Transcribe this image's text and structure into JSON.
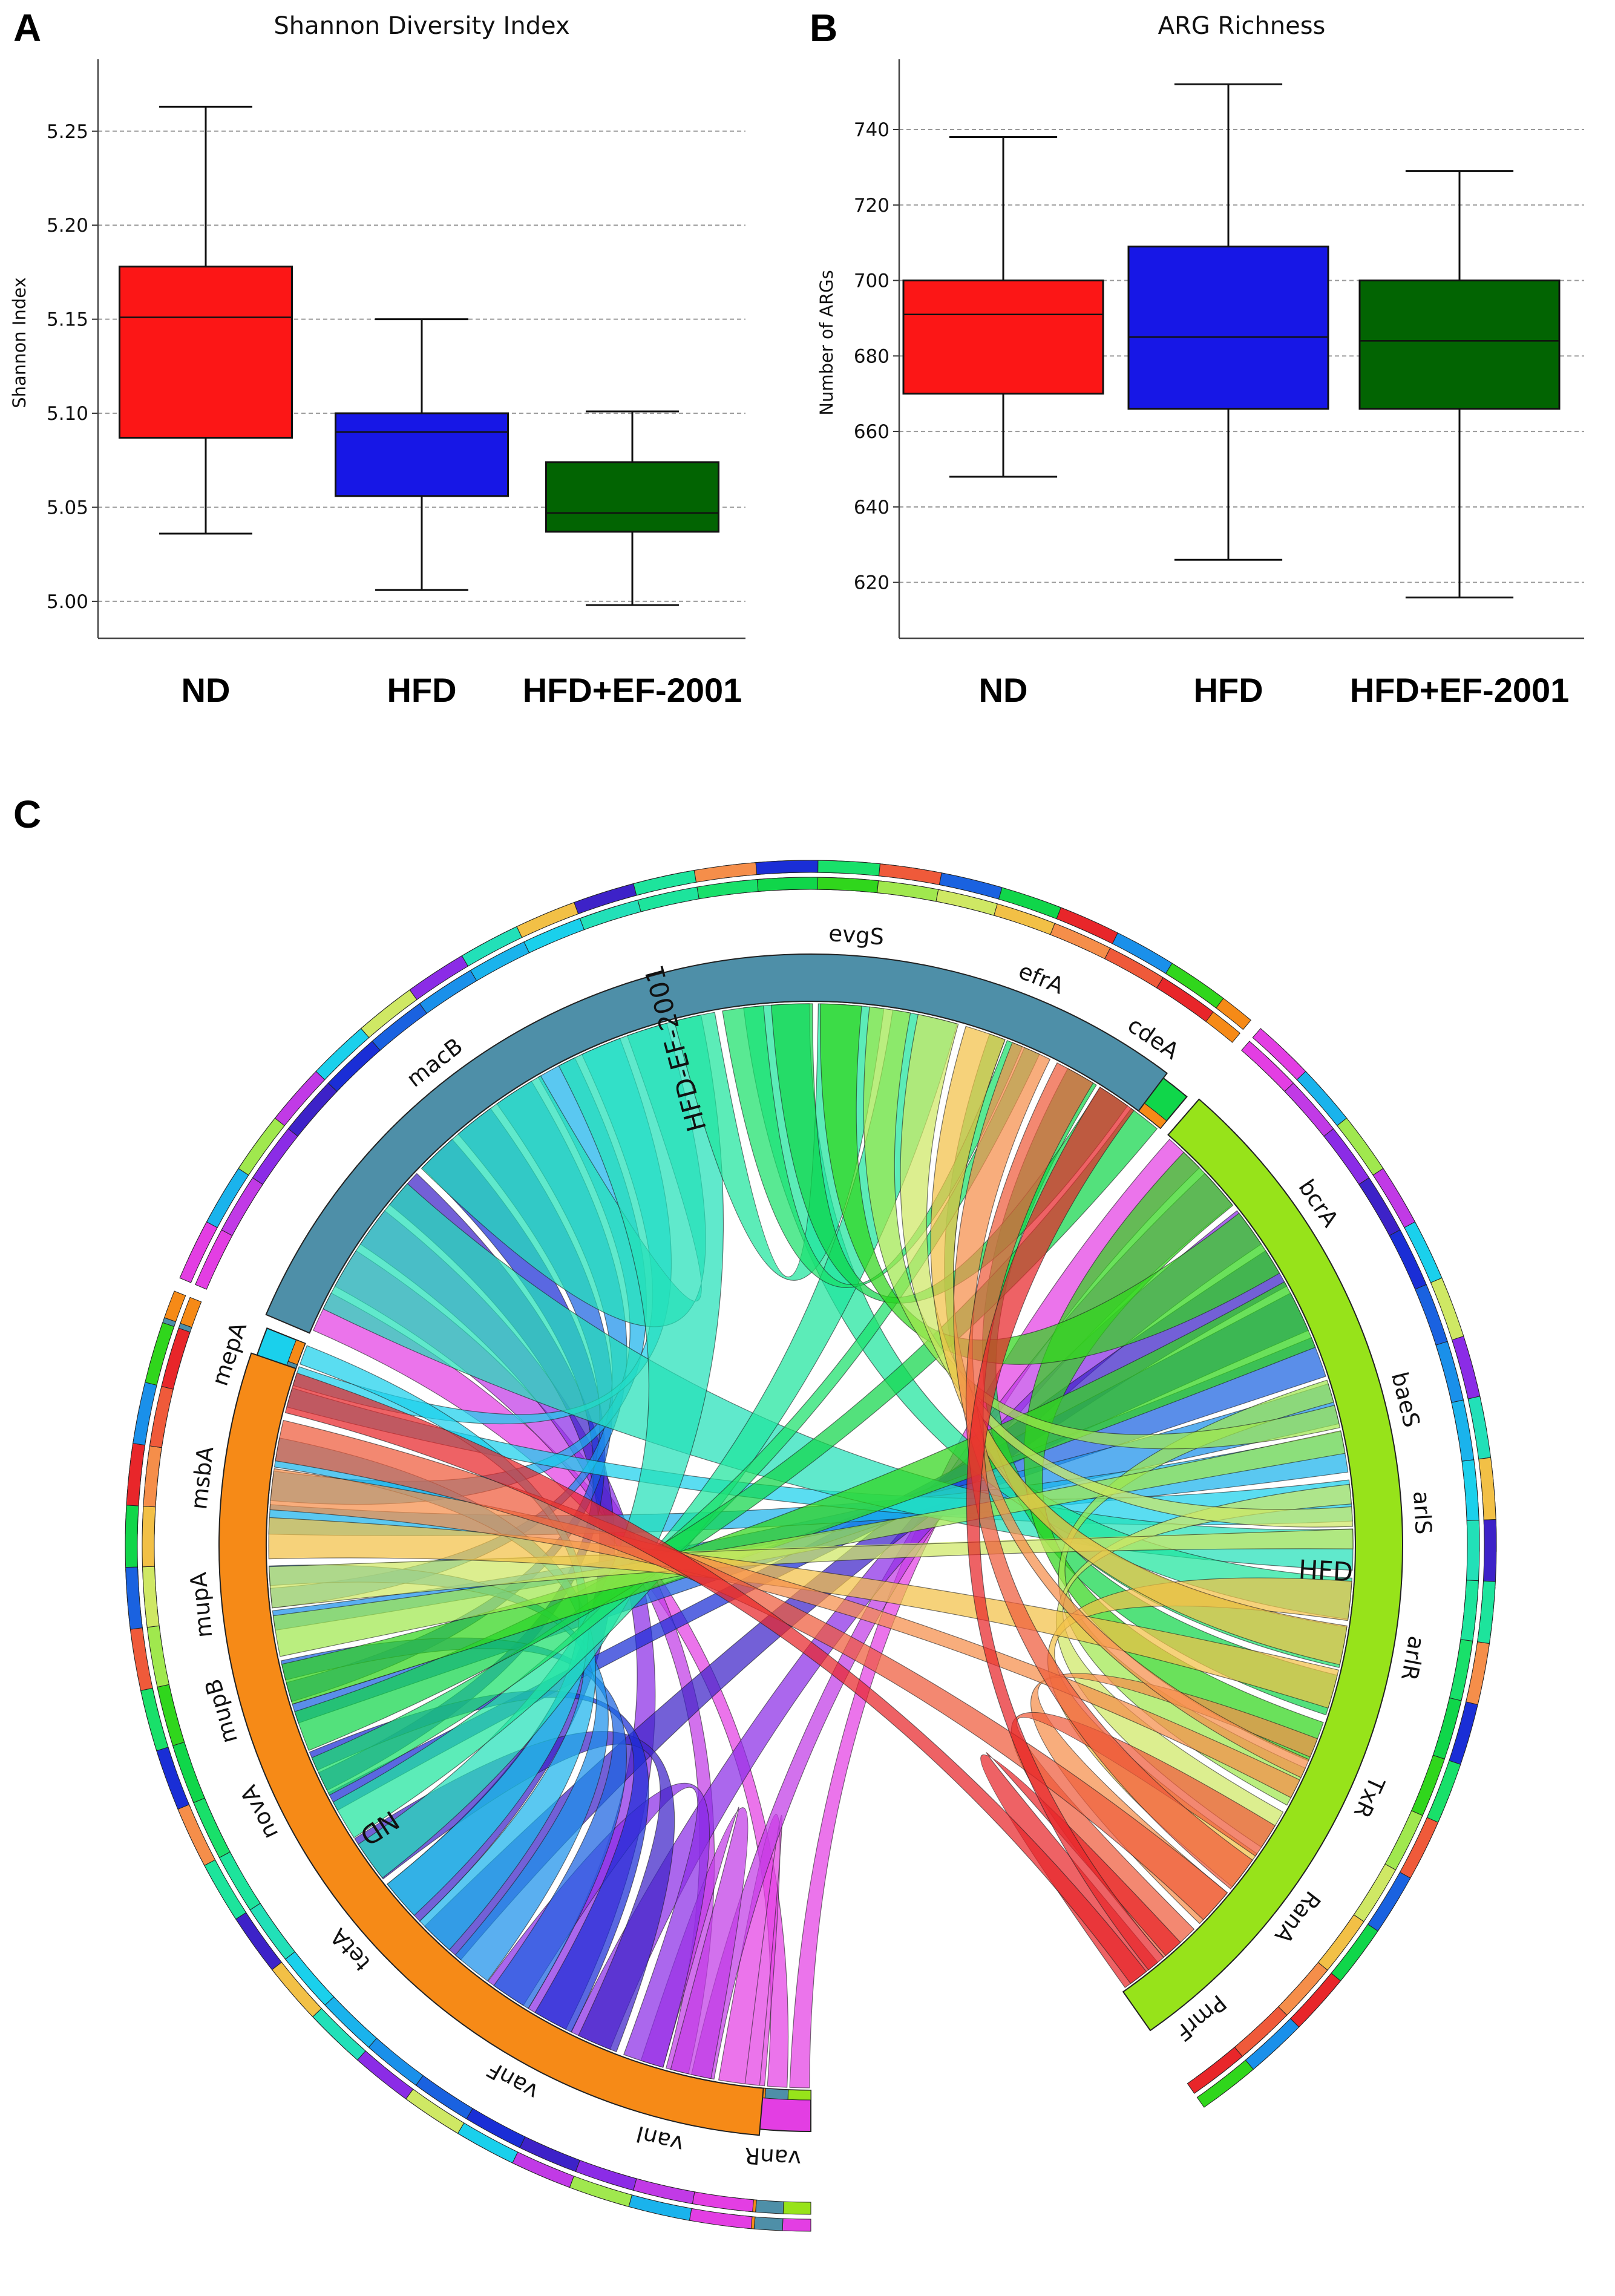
{
  "panels": {
    "a": "A",
    "b": "B",
    "c": "C"
  },
  "chart_data": [
    {
      "type": "box",
      "title": "Shannon Diversity Index",
      "ylabel": "Shannon Index",
      "xlabel": "",
      "ylim": [
        4.99,
        5.285
      ],
      "yticks": [
        5.0,
        5.05,
        5.1,
        5.15,
        5.2,
        5.25
      ],
      "ytick_labels": [
        "5.00",
        "5.05",
        "5.10",
        "5.15",
        "5.20",
        "5.25"
      ],
      "categories": [
        "ND",
        "HFD",
        "HFD+EF-2001"
      ],
      "colors": [
        "#fc1616",
        "#1717e6",
        "#026402"
      ],
      "boxes": [
        {
          "min": 5.036,
          "q1": 5.087,
          "median": 5.151,
          "q3": 5.178,
          "max": 5.263
        },
        {
          "min": 5.006,
          "q1": 5.056,
          "median": 5.09,
          "q3": 5.1,
          "max": 5.15
        },
        {
          "min": 4.998,
          "q1": 5.037,
          "median": 5.047,
          "q3": 5.074,
          "max": 5.101
        }
      ]
    },
    {
      "type": "box",
      "title": "ARG Richness",
      "ylabel": "Number of ARGs",
      "xlabel": "",
      "ylim": [
        610,
        757
      ],
      "yticks": [
        620,
        640,
        660,
        680,
        700,
        720,
        740
      ],
      "ytick_labels": [
        "620",
        "640",
        "660",
        "680",
        "700",
        "720",
        "740"
      ],
      "categories": [
        "ND",
        "HFD",
        "HFD+EF-2001"
      ],
      "colors": [
        "#fc1616",
        "#1717e6",
        "#026402"
      ],
      "boxes": [
        {
          "min": 648,
          "q1": 670,
          "median": 691,
          "q3": 700,
          "max": 738
        },
        {
          "min": 626,
          "q1": 666,
          "median": 685,
          "q3": 709,
          "max": 752
        },
        {
          "min": 616,
          "q1": 666,
          "median": 684,
          "q3": 700,
          "max": 729
        }
      ]
    },
    {
      "type": "chord",
      "groups": [
        {
          "name": "HFD",
          "color": "#97e31a"
        },
        {
          "name": "HFD-EF-2001",
          "color": "#4e8fa8"
        },
        {
          "name": "ND",
          "color": "#f68a17"
        }
      ],
      "genes": [
        {
          "name": "vanR",
          "color": "#e33ee3",
          "weight": 0.6
        },
        {
          "name": "vanI",
          "color": "#c13ae6",
          "weight": 0.7
        },
        {
          "name": "vanF",
          "color": "#8b2ce6",
          "weight": 1.3
        },
        {
          "name": "tetA",
          "color": "#3d22c8",
          "weight": 1.5
        },
        {
          "name": "novA",
          "color": "#1a2ed6",
          "weight": 0.6
        },
        {
          "name": "mupB",
          "color": "#1a62e0",
          "weight": 0.6
        },
        {
          "name": "mupA",
          "color": "#1a90ea",
          "weight": 0.6
        },
        {
          "name": "msbA",
          "color": "#1ab3ec",
          "weight": 0.9
        },
        {
          "name": "mepA",
          "color": "#1ad0ec",
          "weight": 0.6
        },
        {
          "name": "macB",
          "color": "#22e0b8",
          "weight": 4.6
        },
        {
          "name": "evgS",
          "color": "#1de49c",
          "weight": 2.0
        },
        {
          "name": "efrA",
          "color": "#19e06a",
          "weight": 0.5
        },
        {
          "name": "cdeA",
          "color": "#10d64a",
          "weight": 1.0
        },
        {
          "name": "bcrA",
          "color": "#30d61c",
          "weight": 2.2
        },
        {
          "name": "baeS",
          "color": "#a0e84e",
          "weight": 0.7
        },
        {
          "name": "arlS",
          "color": "#cfe864",
          "weight": 0.6
        },
        {
          "name": "arlR",
          "color": "#f2c046",
          "weight": 1.2
        },
        {
          "name": "TxR",
          "color": "#f58e4a",
          "weight": 0.6
        },
        {
          "name": "RanA",
          "color": "#ef5a3a",
          "weight": 1.1
        },
        {
          "name": "PmrF",
          "color": "#e8262a",
          "weight": 0.6
        }
      ]
    }
  ]
}
